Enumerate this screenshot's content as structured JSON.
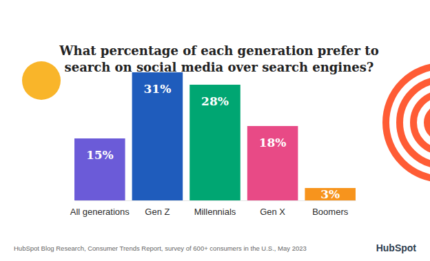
{
  "chart_data": {
    "type": "bar",
    "title": "What percentage of each generation prefer to search on social media over search engines?",
    "categories": [
      "All generations",
      "Gen Z",
      "Millennials",
      "Gen X",
      "Boomers"
    ],
    "values": [
      15,
      31,
      28,
      18,
      3
    ],
    "value_labels": [
      "15%",
      "31%",
      "28%",
      "18%",
      "3%"
    ],
    "colors": [
      "#6b5bd8",
      "#1f5cbc",
      "#00a672",
      "#e84a86",
      "#f7941d"
    ],
    "ylim": [
      0,
      31
    ],
    "data_labels": true,
    "tick_labels": "x",
    "annotations": [
      "HubSpot Blog Research, Consumer Trends Report, survey of 600+ consumers in the U.S., May 2023",
      "HubSpot"
    ]
  }
}
